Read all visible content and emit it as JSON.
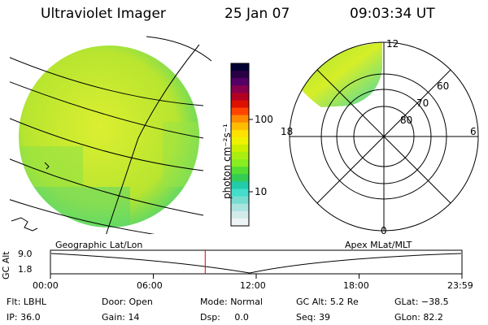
{
  "header": {
    "title": "Ultraviolet Imager",
    "date": "25 Jan 07",
    "time": "09:03:34 UT"
  },
  "colorbar": {
    "unit_label": "photon cm⁻²s⁻¹",
    "ticks": [
      "100",
      "10"
    ],
    "colors": [
      "#000033",
      "#2a0044",
      "#550066",
      "#88004d",
      "#b30022",
      "#dd1100",
      "#ff4400",
      "#ff8800",
      "#ffbb00",
      "#ffe000",
      "#eef200",
      "#ccee00",
      "#aaee11",
      "#88ee22",
      "#55dd33",
      "#33cc55",
      "#22ccaa",
      "#44ddcc",
      "#77ddd0",
      "#aae3e0",
      "#d2ebea",
      "#eef4f4"
    ]
  },
  "left_panel": {
    "label": "Geographic Lat/Lon",
    "fill_color": "#c9ea2a"
  },
  "right_panel": {
    "label": "Apex MLat/MLT",
    "mlt_labels": {
      "top": "12",
      "left": "18",
      "right": "6",
      "bottom": "0"
    },
    "lat_labels": [
      "60",
      "70",
      "80"
    ]
  },
  "timeline": {
    "alt_label": "GC Alt",
    "y_ticks": [
      "9.0",
      "1.8"
    ],
    "x_ticks": [
      "00:00",
      "06:00",
      "12:00",
      "18:00",
      "23:59"
    ],
    "current_time_fraction": 0.376,
    "marker_color": "#dd0000"
  },
  "status": {
    "row1": [
      {
        "label": "Flt:",
        "value": "LBHL"
      },
      {
        "label": "Door:",
        "value": "Open"
      },
      {
        "label": "Mode:",
        "value": "Normal"
      },
      {
        "label": "GC Alt:",
        "value": "5.2 Re"
      },
      {
        "label": "GLat:",
        "value": "−38.5"
      }
    ],
    "row2": [
      {
        "label": "IP:",
        "value": "36.0"
      },
      {
        "label": "Gain:",
        "value": "14"
      },
      {
        "label": "Dsp:",
        "value": "0.0"
      },
      {
        "label": "Seq:",
        "value": "39"
      },
      {
        "label": "GLon:",
        "value": "82.2"
      }
    ]
  }
}
